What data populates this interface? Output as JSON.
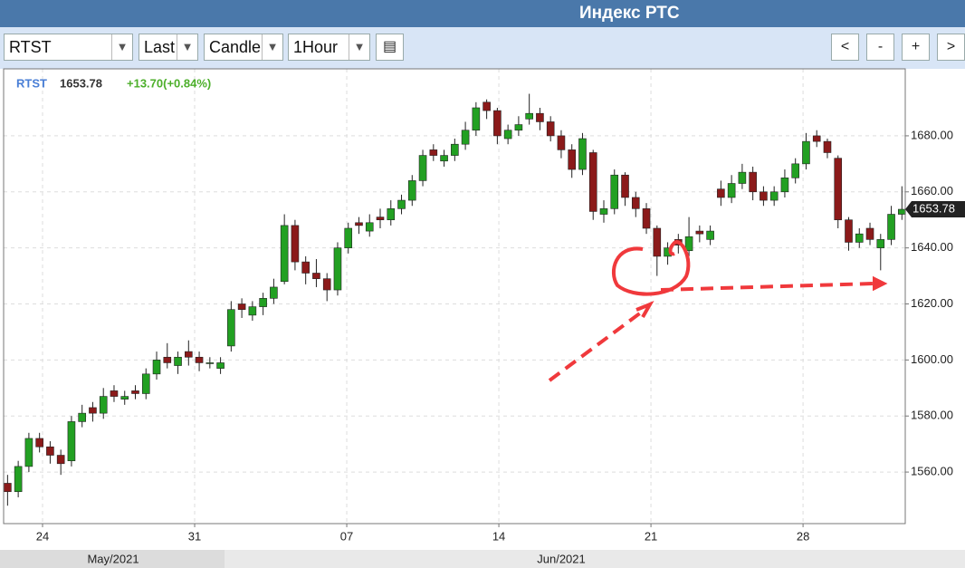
{
  "header": {
    "title": "Индекс РТС"
  },
  "toolbar": {
    "symbol": "RTST",
    "field": "Last",
    "style": "Candle",
    "interval": "1Hour",
    "buttons": [
      "<",
      "-",
      "+",
      ">"
    ]
  },
  "legend": {
    "symbol": "RTST",
    "price": "1653.78",
    "change": "+13.70(+0.84%)"
  },
  "chart_data": {
    "type": "candlestick",
    "up_color": "#22a022",
    "down_color": "#8b1a1a",
    "x": [
      -1.15,
      -0.8,
      -0.45,
      -0.1,
      0.25,
      0.6,
      0.95,
      1.3,
      1.65,
      2,
      2.35,
      2.7,
      3.05,
      3.4,
      3.75,
      4.1,
      4.45,
      4.8,
      5.15,
      5.5,
      5.85,
      6.2,
      6.55,
      6.9,
      7.25,
      7.6,
      7.95,
      8.3,
      8.65,
      9,
      9.35,
      9.7,
      10.05,
      10.4,
      10.75,
      11.1,
      11.45,
      11.8,
      12.15,
      12.5,
      12.85,
      13.2,
      13.55,
      13.9,
      14.25,
      14.6,
      14.95,
      15.3,
      15.65,
      16,
      16.35,
      16.7,
      17.05,
      17.4,
      17.75,
      18.1,
      18.45,
      18.8,
      19.15,
      19.5,
      19.85,
      20.2,
      20.55,
      20.9,
      21.25,
      21.6,
      21.95,
      22.3,
      22.65,
      23,
      23.35,
      23.7,
      24.05,
      24.4,
      24.75,
      25.1,
      25.45,
      25.8,
      26.15,
      26.5,
      26.85,
      27.2,
      27.55,
      27.9,
      28.25
    ],
    "open": [
      1556,
      1553,
      1562,
      1572,
      1569,
      1566,
      1564,
      1578,
      1583,
      1581,
      1589,
      1586,
      1589,
      1588,
      1595,
      1601,
      1598,
      1603,
      1601,
      1599,
      1597,
      1605,
      1620,
      1616,
      1619,
      1622,
      1628,
      1648,
      1635,
      1631,
      1629,
      1625,
      1640,
      1649,
      1646,
      1651,
      1650,
      1654,
      1657,
      1664,
      1675,
      1671,
      1673,
      1677,
      1682,
      1692,
      1689,
      1679,
      1682,
      1686,
      1688,
      1685,
      1680,
      1675,
      1668,
      1674,
      1652,
      1654,
      1666,
      1658,
      1654,
      1647,
      1637,
      1643,
      1639,
      1646,
      1643,
      1661,
      1658,
      1663,
      1667,
      1660,
      1657,
      1660,
      1665,
      1670,
      1680,
      1678,
      1672,
      1650,
      1642,
      1647,
      1640,
      1643,
      1652
    ],
    "high": [
      1559,
      1564,
      1574,
      1574,
      1571,
      1568,
      1580,
      1584,
      1585,
      1590,
      1591,
      1589,
      1591,
      1597,
      1603,
      1606,
      1603,
      1607,
      1603,
      1601,
      1601,
      1621,
      1622,
      1621,
      1624,
      1629,
      1652,
      1650,
      1637,
      1636,
      1631,
      1642,
      1649,
      1651,
      1652,
      1654,
      1657,
      1659,
      1666,
      1675,
      1677,
      1675,
      1679,
      1685,
      1692,
      1693,
      1690,
      1684,
      1687,
      1695,
      1690,
      1687,
      1682,
      1677,
      1681,
      1675,
      1657,
      1668,
      1667,
      1660,
      1656,
      1648,
      1642,
      1645,
      1651,
      1648,
      1648,
      1664,
      1666,
      1670,
      1669,
      1662,
      1662,
      1668,
      1672,
      1681,
      1682,
      1679,
      1673,
      1651,
      1647,
      1649,
      1645,
      1655,
      1662
    ],
    "low": [
      1548,
      1551,
      1560,
      1567,
      1563,
      1559,
      1562,
      1576,
      1578,
      1579,
      1585,
      1584,
      1586,
      1586,
      1593,
      1597,
      1595,
      1598,
      1596,
      1597,
      1595,
      1603,
      1615,
      1614,
      1616,
      1620,
      1627,
      1632,
      1627,
      1626,
      1621,
      1623,
      1638,
      1645,
      1644,
      1647,
      1648,
      1652,
      1655,
      1662,
      1671,
      1669,
      1671,
      1675,
      1680,
      1686,
      1677,
      1677,
      1680,
      1684,
      1682,
      1678,
      1672,
      1665,
      1666,
      1650,
      1649,
      1652,
      1655,
      1651,
      1645,
      1630,
      1634,
      1638,
      1637,
      1642,
      1641,
      1655,
      1656,
      1661,
      1657,
      1655,
      1655,
      1658,
      1663,
      1668,
      1676,
      1672,
      1647,
      1639,
      1640,
      1641,
      1632,
      1641,
      1650
    ],
    "close": [
      1553,
      1562,
      1572,
      1569,
      1566,
      1563,
      1578,
      1581,
      1581,
      1587,
      1587,
      1587,
      1588,
      1595,
      1600,
      1599,
      1601,
      1601,
      1599,
      1599,
      1599,
      1618,
      1618,
      1619,
      1622,
      1626,
      1648,
      1635,
      1631,
      1629,
      1625,
      1640,
      1647,
      1648,
      1649,
      1650,
      1654,
      1657,
      1664,
      1673,
      1673,
      1673,
      1677,
      1682,
      1690,
      1689,
      1680,
      1682,
      1684,
      1688,
      1685,
      1680,
      1675,
      1668,
      1679,
      1653,
      1654,
      1666,
      1658,
      1654,
      1647,
      1637,
      1640,
      1641,
      1644,
      1645,
      1646,
      1658,
      1663,
      1667,
      1660,
      1657,
      1660,
      1665,
      1670,
      1678,
      1678,
      1674,
      1650,
      1642,
      1645,
      1643,
      1643,
      1652,
      1653.78
    ],
    "xlim": [
      -1.28,
      28.36
    ],
    "xticks": [
      {
        "value": 0,
        "label": "24"
      },
      {
        "value": 5,
        "label": "31"
      },
      {
        "value": 10,
        "label": "07"
      },
      {
        "value": 15,
        "label": "14"
      },
      {
        "value": 20,
        "label": "21"
      },
      {
        "value": 25,
        "label": "28"
      }
    ],
    "ylim": [
      1541.6,
      1703.9
    ],
    "yticks": [
      {
        "value": 1560,
        "label": "1560.00"
      },
      {
        "value": 1580,
        "label": "1580.00"
      },
      {
        "value": 1600,
        "label": "1600.00"
      },
      {
        "value": 1620,
        "label": "1620.00"
      },
      {
        "value": 1640,
        "label": "1640.00"
      },
      {
        "value": 1660,
        "label": "1660.00"
      },
      {
        "value": 1680,
        "label": "1680.00"
      }
    ],
    "months": [
      "May/2021",
      "Jun/2021"
    ],
    "grid": true
  }
}
